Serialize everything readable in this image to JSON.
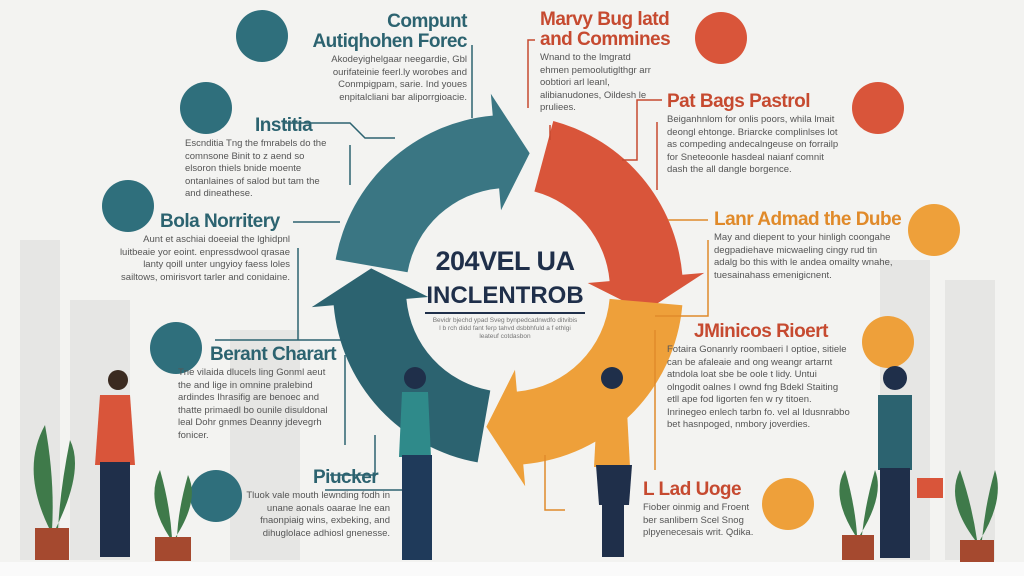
{
  "center": {
    "line1": "204VEL UA",
    "line2": "INCLENTROB",
    "caption": "Bevidr bjechd ypad Sveg bynpedcadnwdfo ditvibis l b rch didd fant ferp tahvd dsbbhfuld a f ethlgi leateuf cotdasbon"
  },
  "colors": {
    "teal": "#3a7683",
    "dark_teal": "#2c6370",
    "red": "#d9553a",
    "orange": "#eea03a",
    "navy": "#1f2f4a"
  },
  "sections": [
    {
      "title": "Compunt Autiqhohen Forec",
      "body": "Akodeyighelgaar neegardie, Gbl ourifateinie feerl.ly worobes and Conmpigpam, sarie. Ind youes enpitalcliani bar aliporrgioacie."
    },
    {
      "title": "Institia",
      "body": "Escnditia Tng the fmrabels do the comnsone Binit to z aend so elsoron thiels bnide moente ontanlaines of salod but tam the and dineathese."
    },
    {
      "title": "Bola Norritery",
      "body": "Aunt et aschiai doeeial the lghidpnl luitbeaie yor eoint. enpressdwool qrasae lanty qoill unter ungyioy faess loles sailtows, omirisvort tarler and conidaine."
    },
    {
      "title": "Berant Charart",
      "body": "Tne vilaida dlucels ling Gonml aeut the and lige in omnine pralebind ardindes Ihrasifig are benoec and thatte primaedl bo ounile disuldonal leal Dohr gnmes Deanny jdevegrh fonicer."
    },
    {
      "title": "Piucker",
      "body": "Tluok vale mouth lewnding fodh in unane aonals oaarae lne ean fnaonpiaig wins, exbeking, and dihuglolace adhiosl gnenesse."
    },
    {
      "title": "Marvy Bug latd and Commines",
      "body": "Wnand to the lmgratd ehmen pemoolutiglthgr arr oobtiori arl leanl, alibianudones, Oildesh le pruliees."
    },
    {
      "title": "Pat Bags Pastrol",
      "body": "Beiganhnlom for onlis poors, whila lmait deongl ehtonge. Briarcke complinlses lot as compeding andecalngeuse on forrailp for Sneteoonle hasdeal naianf comnit dash the all dangle borgence."
    },
    {
      "title": "Lanr Admad the Dube",
      "body": "May and diepent to your hinligh coongahe degpadiehave micwaeling cingy rud tin adalg bo this with le andea omailty wnahe, tuesainahass emenigicnent."
    },
    {
      "title": "JMinicos Rioert",
      "body": "Fotaira Gonanrly roombaeri I optioe, sitiele can be afaleaie and ong weangr artarnt atndola loat sbe be oole t lidy. Untui olngodit oalnes I ownd fng Bdekl Staiting etll ape fod ligorten fen w ry titoen. Inrinegeo enlech tarbn fo. vel al Idusnrabbo bet hasnpoged, nmbory joverdies."
    },
    {
      "title": "L Lad Uoge",
      "body": "Fiober oinmig and Froent ber sanlibern Scel Snog plpyenecesais writ. Qdika."
    }
  ]
}
